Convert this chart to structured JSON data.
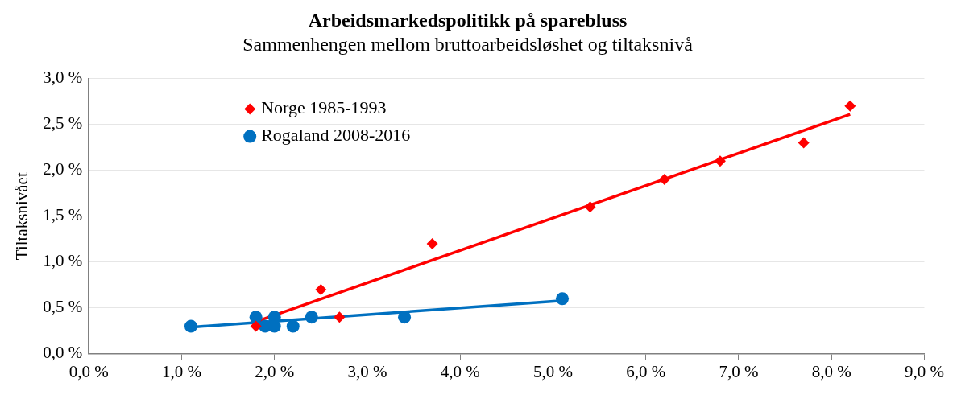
{
  "chart_data": {
    "type": "scatter",
    "title": "Arbeidsmarkedspolitikk på sparebluss",
    "subtitle": "Sammenhengen mellom bruttoarbeidsløshet og tiltaksnivå",
    "ylabel": "Tiltaksnivået",
    "xlim": [
      0,
      9
    ],
    "xticks": [
      {
        "value": 0,
        "label": "0,0 %"
      },
      {
        "value": 1,
        "label": "1,0 %"
      },
      {
        "value": 2,
        "label": "2,0 %"
      },
      {
        "value": 3,
        "label": "3,0 %"
      },
      {
        "value": 4,
        "label": "4,0 %"
      },
      {
        "value": 5,
        "label": "5,0 %"
      },
      {
        "value": 6,
        "label": "6,0 %"
      },
      {
        "value": 7,
        "label": "7,0 %"
      },
      {
        "value": 8,
        "label": "8,0 %"
      },
      {
        "value": 9,
        "label": "9,0 %"
      }
    ],
    "ylim": [
      0,
      3
    ],
    "yticks": [
      {
        "value": 0,
        "label": "0,0 %"
      },
      {
        "value": 0.5,
        "label": "0,5 %"
      },
      {
        "value": 1,
        "label": "1,0 %"
      },
      {
        "value": 1.5,
        "label": "1,5 %"
      },
      {
        "value": 2,
        "label": "2,0 %"
      },
      {
        "value": 2.5,
        "label": "2,5 %"
      },
      {
        "value": 3,
        "label": "3,0 %"
      }
    ],
    "grid": "y",
    "legend": "top left",
    "series": [
      {
        "type": "line",
        "color": "#ff0000",
        "marker": "none",
        "x": [
          1.8,
          8.2
        ],
        "values": [
          0.35,
          2.61
        ]
      },
      {
        "type": "line",
        "color": "#0070c0",
        "marker": "none",
        "x": [
          1.1,
          5.1
        ],
        "values": [
          0.29,
          0.58
        ]
      },
      {
        "name": "Norge 1985-1993",
        "color": "#ff0000",
        "marker": "diamond",
        "x": [
          1.8,
          2.5,
          2.7,
          3.7,
          5.4,
          6.2,
          6.8,
          7.7,
          8.2
        ],
        "values": [
          0.3,
          0.7,
          0.4,
          1.2,
          1.6,
          1.9,
          2.1,
          2.3,
          2.7
        ]
      },
      {
        "name": "Rogaland 2008-2016",
        "color": "#0070c0",
        "marker": "circle",
        "x": [
          1.1,
          1.8,
          1.9,
          2.0,
          2.0,
          2.2,
          2.4,
          3.4,
          5.1
        ],
        "values": [
          0.3,
          0.4,
          0.3,
          0.4,
          0.3,
          0.3,
          0.4,
          0.4,
          0.6
        ]
      }
    ]
  }
}
